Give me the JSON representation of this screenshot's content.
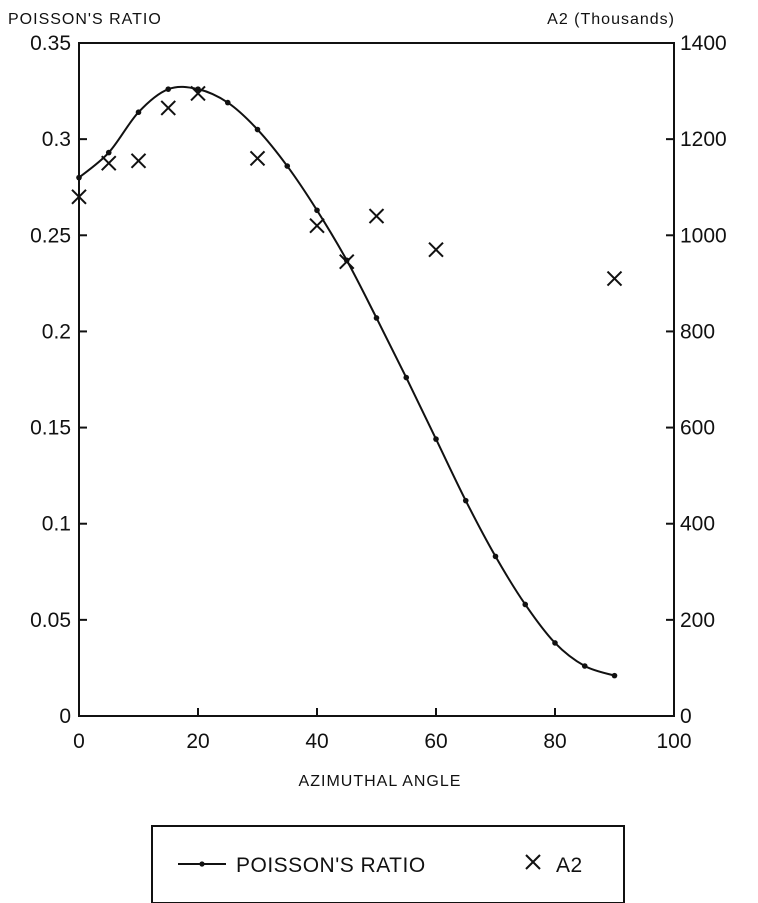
{
  "chart_data": {
    "type": "line",
    "xlabel": "AZIMUTHAL ANGLE",
    "ylabel_left": "POISSON'S RATIO",
    "ylabel_right": "A2 (Thousands)",
    "xlim": [
      0,
      100
    ],
    "ylim_left": [
      0,
      0.35
    ],
    "ylim_right": [
      0,
      1400
    ],
    "x_ticks": [
      "0",
      "20",
      "40",
      "60",
      "80",
      "100"
    ],
    "y_left_ticks": [
      "0",
      "0.05",
      "0.1",
      "0.15",
      "0.2",
      "0.25",
      "0.3",
      "0.35"
    ],
    "y_right_ticks": [
      "0",
      "200",
      "400",
      "600",
      "800",
      "1000",
      "1200",
      "1400"
    ],
    "grid": false,
    "legend_position": "bottom",
    "series": [
      {
        "name": "POISSON'S RATIO",
        "axis": "left",
        "style": "line-with-dots",
        "x": [
          0,
          5,
          10,
          15,
          20,
          25,
          30,
          35,
          40,
          45,
          50,
          55,
          60,
          65,
          70,
          75,
          80,
          85,
          90
        ],
        "y": [
          0.28,
          0.293,
          0.314,
          0.326,
          0.326,
          0.319,
          0.305,
          0.286,
          0.263,
          0.237,
          0.207,
          0.176,
          0.144,
          0.112,
          0.083,
          0.058,
          0.038,
          0.026,
          0.021
        ]
      },
      {
        "name": "A2",
        "axis": "right",
        "style": "x-markers",
        "x": [
          0,
          5,
          10,
          15,
          20,
          30,
          40,
          45,
          50,
          60,
          90
        ],
        "y": [
          1080,
          1150,
          1155,
          1265,
          1295,
          1160,
          1020,
          945,
          1040,
          970,
          910
        ]
      }
    ]
  }
}
